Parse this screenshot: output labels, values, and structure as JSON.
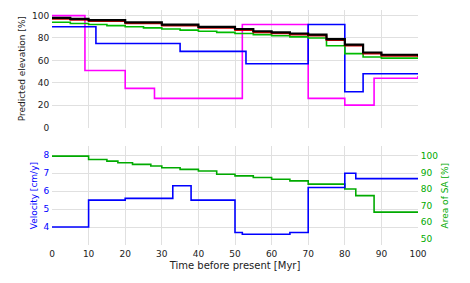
{
  "chart_data": [
    {
      "type": "line",
      "ylabel": "Predicted elevation [%]",
      "xlim": [
        0,
        100
      ],
      "xticks": [
        0,
        10,
        20,
        30,
        40,
        50,
        60,
        70,
        80,
        90,
        100
      ],
      "ylim": [
        0,
        105
      ],
      "yticks": [
        0,
        20,
        40,
        60,
        80,
        100
      ],
      "grid": true,
      "tick_labels": "y",
      "series": [
        {
          "type": "step",
          "color": "#000000",
          "x": [
            0,
            5,
            10,
            20,
            30,
            40,
            50,
            55,
            60,
            65,
            70,
            75,
            80,
            85,
            90,
            100
          ],
          "values": [
            98,
            97,
            96,
            94,
            92,
            90,
            88,
            86,
            85,
            84,
            83,
            79,
            74,
            67,
            65,
            64
          ]
        },
        {
          "type": "step",
          "color": "#cc0000",
          "x": [
            0,
            5,
            10,
            20,
            30,
            40,
            50,
            55,
            60,
            65,
            70,
            75,
            80,
            85,
            90,
            100
          ],
          "values": [
            97,
            96,
            95,
            93,
            91,
            89,
            87,
            85,
            84,
            83,
            82,
            78,
            73,
            66,
            64,
            63
          ]
        },
        {
          "type": "step",
          "color": "#00bb00",
          "x": [
            0,
            5,
            10,
            15,
            20,
            25,
            30,
            35,
            40,
            45,
            50,
            55,
            60,
            65,
            70,
            75,
            80,
            85,
            90,
            100
          ],
          "values": [
            94,
            93,
            92,
            91,
            90,
            89,
            88,
            87,
            86,
            85,
            84,
            83,
            82,
            81,
            80,
            73,
            66,
            63,
            62,
            62
          ]
        },
        {
          "type": "step",
          "color": "#0000ff",
          "x": [
            0,
            10,
            12,
            22,
            30,
            35,
            40,
            50,
            53,
            65,
            70,
            72,
            80,
            82,
            83,
            85,
            90,
            100
          ],
          "values": [
            90,
            90,
            75,
            75,
            75,
            68,
            68,
            68,
            57,
            57,
            92,
            92,
            32,
            32,
            32,
            48,
            48,
            48
          ]
        },
        {
          "type": "step",
          "color": "#ff00ff",
          "x": [
            0,
            7,
            9,
            13,
            20,
            22,
            28,
            35,
            50,
            52,
            65,
            70,
            72,
            78,
            80,
            83,
            88,
            90,
            100
          ],
          "values": [
            100,
            100,
            51,
            51,
            35,
            35,
            26,
            26,
            26,
            92,
            92,
            26,
            26,
            26,
            20,
            20,
            44,
            44,
            46
          ]
        }
      ]
    },
    {
      "type": "line",
      "xlabel": "Time before present [Myr]",
      "ylabel": "Velocity [cm/y]",
      "y2label": "Area of SA [%]",
      "xlim": [
        0,
        100
      ],
      "xticks": [
        0,
        10,
        20,
        30,
        40,
        50,
        60,
        70,
        80,
        90,
        100
      ],
      "ylim": [
        3.0,
        8.5
      ],
      "yticks": [
        4,
        5,
        6,
        7,
        8
      ],
      "y2lim": [
        46,
        106
      ],
      "y2ticks": [
        50,
        60,
        70,
        80,
        90,
        100
      ],
      "grid": true,
      "series": [
        {
          "type": "line",
          "color": "#0000ff",
          "x": [
            0,
            10,
            10,
            20,
            20,
            33,
            33,
            38,
            38,
            50,
            50,
            52,
            52,
            65,
            65,
            70,
            70,
            80,
            80,
            83,
            83,
            100
          ],
          "values": [
            4.0,
            4.0,
            5.5,
            5.5,
            5.6,
            5.6,
            6.3,
            6.3,
            5.5,
            5.5,
            3.7,
            3.7,
            3.6,
            3.6,
            3.7,
            3.7,
            6.2,
            6.2,
            7.0,
            7.0,
            6.7,
            6.7
          ]
        },
        {
          "type": "step",
          "color": "#00aa00",
          "axis": "y2",
          "x": [
            0,
            7,
            10,
            15,
            18,
            22,
            27,
            30,
            35,
            40,
            45,
            50,
            55,
            60,
            65,
            70,
            72,
            80,
            83,
            88,
            100
          ],
          "values": [
            100,
            100,
            98,
            97,
            96,
            95,
            94,
            93,
            92,
            91,
            89,
            88,
            87,
            86,
            85,
            83,
            83,
            80,
            76,
            66,
            66
          ]
        }
      ]
    }
  ]
}
